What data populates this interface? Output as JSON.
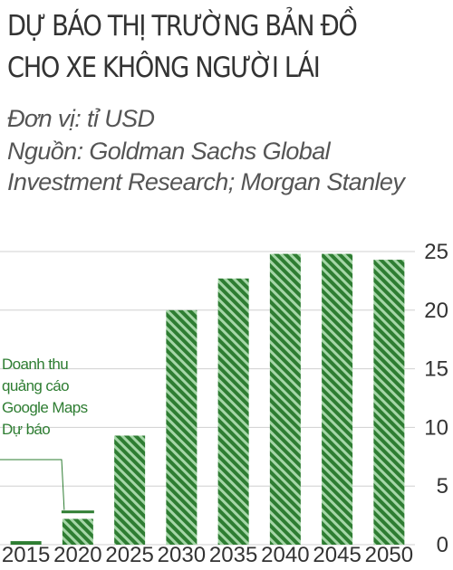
{
  "header": {
    "title_line1": "DỰ BÁO THỊ TRƯỜNG BẢN ĐỒ",
    "title_line2": "CHO XE KHÔNG NGƯỜI LÁI",
    "unit": "Đơn vị: tỉ USD",
    "source": "Nguồn: Goldman Sachs Global Investment Research; Morgan Stanley"
  },
  "colors": {
    "bar": "#2e7d32",
    "stripe": "#a5d6a7",
    "grid": "#d0d0d0",
    "annotation": "#2e7d32"
  },
  "chart_data": {
    "type": "bar",
    "categories": [
      "2015",
      "2020",
      "2025",
      "2030",
      "2035",
      "2040",
      "2045",
      "2050"
    ],
    "values": [
      0.3,
      2.2,
      9.3,
      20,
      22.7,
      24.8,
      24.8,
      24.3
    ],
    "ylim": [
      0,
      25
    ],
    "yticks": [
      0,
      5,
      10,
      15,
      20,
      25
    ],
    "y_axis_position": "right",
    "grid": true,
    "marker": {
      "category": "2020",
      "value": 2.8
    },
    "annotation": {
      "lines": [
        "Doanh thu",
        "quảng cáo",
        "Google Maps",
        "Dự báo"
      ]
    }
  }
}
